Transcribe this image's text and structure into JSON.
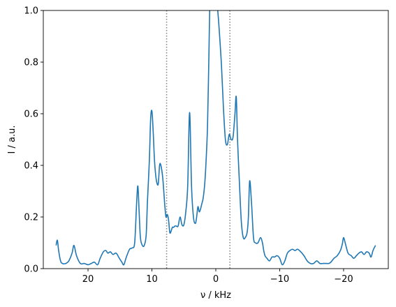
{
  "chart_data": {
    "type": "line",
    "xlabel": "ν / kHz",
    "ylabel": "I / a.u.",
    "xlim": [
      27,
      -27
    ],
    "ylim": [
      0,
      1.0
    ],
    "x_invert": true,
    "xticks": [
      20,
      10,
      0,
      -10,
      -20
    ],
    "xtick_labels": [
      "20",
      "10",
      "0",
      "−10",
      "−20"
    ],
    "yticks": [
      0.0,
      0.2,
      0.4,
      0.6,
      0.8,
      1.0
    ],
    "ytick_labels": [
      "0.0",
      "0.2",
      "0.4",
      "0.6",
      "0.8",
      "1.0"
    ],
    "grid": false,
    "series": [
      {
        "color": "#1f77b4",
        "x": [
          25,
          24.8,
          24.6,
          24.3,
          24.0,
          23.5,
          23.0,
          22.5,
          22.2,
          21.8,
          21.2,
          20.6,
          20.0,
          19.5,
          19.0,
          18.5,
          18.1,
          17.6,
          17.2,
          16.9,
          16.5,
          16.1,
          15.6,
          15.1,
          14.7,
          14.4,
          14.0,
          13.5,
          13.1,
          12.7,
          12.4,
          12.2,
          12.0,
          11.8,
          11.5,
          11.2,
          10.9,
          10.7,
          10.4,
          10.2,
          10.0,
          9.8,
          9.6,
          9.4,
          9.2,
          9.0,
          8.8,
          8.6,
          8.3,
          8.0,
          7.8,
          7.6,
          7.4,
          7.2,
          7.0,
          6.8,
          6.6,
          6.4,
          6.2,
          5.9,
          5.6,
          5.3,
          5.0,
          4.7,
          4.4,
          4.1,
          3.8,
          3.5,
          3.2,
          3.0,
          2.8,
          2.6,
          2.4,
          2.2,
          2.0,
          1.8,
          1.6,
          1.3,
          1.1,
          0.9,
          0.6,
          0.3,
          0.0,
          -0.3,
          -0.6,
          -0.9,
          -1.2,
          -1.5,
          -1.8,
          -2.1,
          -2.4,
          -2.7,
          -3.0,
          -3.2,
          -3.4,
          -3.7,
          -4.0,
          -4.3,
          -4.6,
          -4.9,
          -5.1,
          -5.3,
          -5.6,
          -5.9,
          -6.2,
          -6.6,
          -7.0,
          -7.3,
          -7.5,
          -7.7,
          -8.0,
          -8.4,
          -8.8,
          -9.2,
          -9.6,
          -10.0,
          -10.4,
          -10.8,
          -11.2,
          -11.6,
          -12.0,
          -12.4,
          -12.8,
          -13.3,
          -13.8,
          -14.3,
          -14.8,
          -15.3,
          -15.8,
          -16.3,
          -16.8,
          -17.3,
          -17.7,
          -18.0,
          -18.5,
          -19.0,
          -19.5,
          -19.8,
          -20.0,
          -20.3,
          -20.7,
          -21.2,
          -21.6,
          -22.0,
          -22.4,
          -22.8,
          -23.2,
          -23.6,
          -24.0,
          -24.3,
          -24.6,
          -25.0
        ],
        "y": [
          0.09,
          0.11,
          0.07,
          0.03,
          0.02,
          0.02,
          0.03,
          0.06,
          0.09,
          0.05,
          0.02,
          0.02,
          0.015,
          0.02,
          0.025,
          0.015,
          0.04,
          0.065,
          0.07,
          0.06,
          0.065,
          0.055,
          0.06,
          0.04,
          0.025,
          0.015,
          0.045,
          0.075,
          0.08,
          0.1,
          0.25,
          0.32,
          0.22,
          0.12,
          0.09,
          0.09,
          0.13,
          0.26,
          0.42,
          0.58,
          0.61,
          0.53,
          0.42,
          0.36,
          0.33,
          0.33,
          0.4,
          0.4,
          0.35,
          0.25,
          0.2,
          0.21,
          0.19,
          0.14,
          0.145,
          0.16,
          0.16,
          0.165,
          0.165,
          0.165,
          0.2,
          0.17,
          0.17,
          0.22,
          0.32,
          0.605,
          0.32,
          0.2,
          0.175,
          0.2,
          0.24,
          0.22,
          0.23,
          0.25,
          0.27,
          0.31,
          0.38,
          0.55,
          0.8,
          1.05,
          1.1,
          1.1,
          1.05,
          1.0,
          0.9,
          0.78,
          0.62,
          0.5,
          0.48,
          0.52,
          0.5,
          0.51,
          0.6,
          0.665,
          0.5,
          0.33,
          0.18,
          0.12,
          0.12,
          0.14,
          0.2,
          0.34,
          0.25,
          0.12,
          0.1,
          0.1,
          0.12,
          0.1,
          0.07,
          0.05,
          0.04,
          0.03,
          0.045,
          0.045,
          0.05,
          0.04,
          0.015,
          0.03,
          0.06,
          0.07,
          0.075,
          0.07,
          0.075,
          0.065,
          0.05,
          0.03,
          0.02,
          0.02,
          0.03,
          0.02,
          0.02,
          0.02,
          0.02,
          0.025,
          0.04,
          0.05,
          0.07,
          0.095,
          0.12,
          0.095,
          0.06,
          0.05,
          0.04,
          0.05,
          0.06,
          0.065,
          0.055,
          0.065,
          0.06,
          0.045,
          0.07,
          0.09
        ]
      }
    ],
    "vlines": [
      {
        "x": 7.7,
        "style": "dotted",
        "color": "#808080"
      },
      {
        "x": -2.2,
        "style": "dotted",
        "color": "#808080"
      }
    ]
  }
}
